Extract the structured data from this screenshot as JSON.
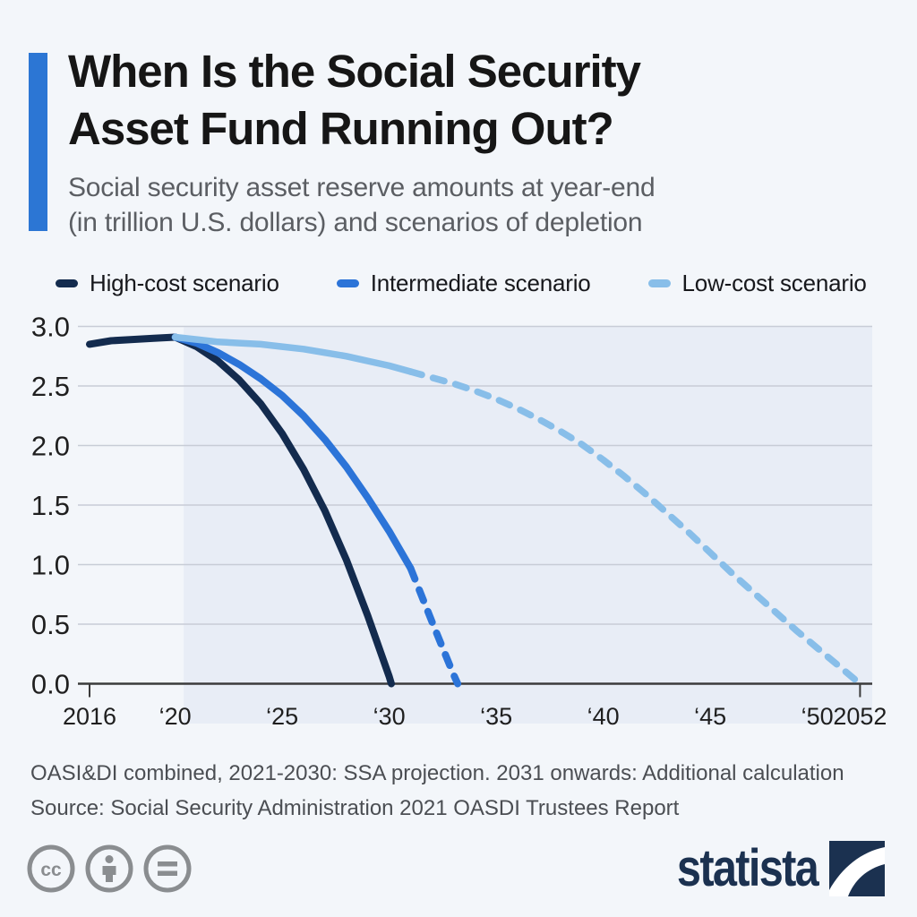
{
  "header": {
    "accent_color": "#2c76d4",
    "title_line1": "When Is the Social Security",
    "title_line2": "Asset Fund Running Out?",
    "subtitle_line1": "Social security asset reserve amounts at year-end",
    "subtitle_line2": "(in trillion U.S. dollars) and scenarios of depletion"
  },
  "legend": {
    "items": [
      {
        "label": "High-cost scenario",
        "color": "#132b4e"
      },
      {
        "label": "Intermediate scenario",
        "color": "#2c74d8"
      },
      {
        "label": "Low-cost scenario",
        "color": "#88bee9"
      }
    ]
  },
  "chart_data": {
    "type": "line",
    "title": "When Is the Social Security Asset Fund Running Out?",
    "subtitle": "Social security asset reserve amounts at year-end (in trillion U.S. dollars) and scenarios of depletion",
    "xlabel": "",
    "ylabel": "",
    "grid": true,
    "legend_position": "top",
    "x_range": [
      2015.45,
      2052.6
    ],
    "y_range": [
      0,
      3
    ],
    "projection_shading_from_year": 2020.4,
    "colors": {
      "plot_shading": "#e8edf6",
      "gridline": "#c7ccd6",
      "axis": "#3b3b3b",
      "tick_label": "#1f1f1f"
    },
    "x_ticks": [
      {
        "year": 2016,
        "label": "2016",
        "tick_mark": true
      },
      {
        "year": 2020,
        "label": "‘20",
        "tick_mark": false
      },
      {
        "year": 2025,
        "label": "‘25",
        "tick_mark": false
      },
      {
        "year": 2030,
        "label": "‘30",
        "tick_mark": false
      },
      {
        "year": 2035,
        "label": "‘35",
        "tick_mark": false
      },
      {
        "year": 2040,
        "label": "‘40",
        "tick_mark": false
      },
      {
        "year": 2045,
        "label": "‘45",
        "tick_mark": false
      },
      {
        "year": 2050,
        "label": "‘50",
        "tick_mark": false
      },
      {
        "year": 2052,
        "label": "2052",
        "tick_mark": true
      }
    ],
    "y_ticks": [
      {
        "value": 0,
        "label": "0.0"
      },
      {
        "value": 0.5,
        "label": "0.5"
      },
      {
        "value": 1,
        "label": "1.0"
      },
      {
        "value": 1.5,
        "label": "1.5"
      },
      {
        "value": 2,
        "label": "2.0"
      },
      {
        "value": 2.5,
        "label": "2.5"
      },
      {
        "value": 3,
        "label": "3.0"
      }
    ],
    "series": [
      {
        "name": "High-cost scenario",
        "color": "#132b4e",
        "width": 8,
        "solid": [
          [
            2016,
            2.85
          ],
          [
            2017,
            2.88
          ],
          [
            2018,
            2.89
          ],
          [
            2019,
            2.9
          ],
          [
            2020,
            2.91
          ],
          [
            2021,
            2.83
          ],
          [
            2022,
            2.71
          ],
          [
            2023,
            2.55
          ],
          [
            2024,
            2.35
          ],
          [
            2025,
            2.1
          ],
          [
            2026,
            1.8
          ],
          [
            2027,
            1.45
          ],
          [
            2028,
            1.04
          ],
          [
            2029,
            0.57
          ],
          [
            2030,
            0.06
          ],
          [
            2030.1,
            0
          ]
        ],
        "dashed": []
      },
      {
        "name": "Intermediate scenario",
        "color": "#2c74d8",
        "width": 8,
        "solid": [
          [
            2020,
            2.91
          ],
          [
            2021,
            2.86
          ],
          [
            2022,
            2.78
          ],
          [
            2023,
            2.68
          ],
          [
            2024,
            2.56
          ],
          [
            2025,
            2.42
          ],
          [
            2026,
            2.25
          ],
          [
            2027,
            2.05
          ],
          [
            2028,
            1.82
          ],
          [
            2029,
            1.56
          ],
          [
            2030,
            1.28
          ],
          [
            2031,
            0.97
          ]
        ],
        "dashed": [
          [
            2031,
            0.97
          ],
          [
            2032,
            0.52
          ],
          [
            2033,
            0.08
          ],
          [
            2033.2,
            0
          ]
        ]
      },
      {
        "name": "Low-cost scenario",
        "color": "#88bee9",
        "width": 7.5,
        "solid": [
          [
            2020,
            2.91
          ],
          [
            2021,
            2.89
          ],
          [
            2022,
            2.87
          ],
          [
            2023,
            2.86
          ],
          [
            2024,
            2.85
          ],
          [
            2025,
            2.83
          ],
          [
            2026,
            2.81
          ],
          [
            2027,
            2.78
          ],
          [
            2028,
            2.75
          ],
          [
            2029,
            2.71
          ],
          [
            2030,
            2.67
          ],
          [
            2031,
            2.62
          ]
        ],
        "dashed": [
          [
            2031,
            2.62
          ],
          [
            2032,
            2.57
          ],
          [
            2033,
            2.52
          ],
          [
            2034,
            2.46
          ],
          [
            2035,
            2.39
          ],
          [
            2036,
            2.31
          ],
          [
            2037,
            2.22
          ],
          [
            2038,
            2.12
          ],
          [
            2039,
            2.01
          ],
          [
            2040,
            1.88
          ],
          [
            2041,
            1.74
          ],
          [
            2042,
            1.59
          ],
          [
            2043,
            1.43
          ],
          [
            2044,
            1.27
          ],
          [
            2045,
            1.1
          ],
          [
            2046,
            0.93
          ],
          [
            2047,
            0.77
          ],
          [
            2048,
            0.61
          ],
          [
            2049,
            0.45
          ],
          [
            2050,
            0.3
          ],
          [
            2051,
            0.15
          ],
          [
            2052,
            0
          ]
        ]
      }
    ]
  },
  "footer": {
    "note": "OASI&DI combined, 2021-2030: SSA projection. 2031 onwards: Additional calculation",
    "source": "Source: Social Security Administration 2021 OASDI Trustees Report",
    "brand": "statista",
    "icon_color": "#8a8d90",
    "brand_color": "#1b3150"
  }
}
